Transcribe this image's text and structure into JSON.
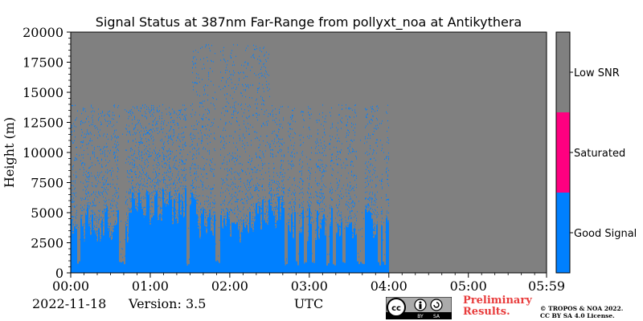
{
  "chart_data": {
    "type": "heatmap",
    "title": "Signal Status at 387nm Far-Range from pollyxt_noa at Antikythera",
    "xlabel": "UTC",
    "ylabel": "Height (m)",
    "x_ticks": [
      "00:00",
      "01:00",
      "02:00",
      "03:00",
      "04:00",
      "05:00",
      "05:59"
    ],
    "y_ticks": [
      "0",
      "2500",
      "5000",
      "7500",
      "10000",
      "12500",
      "15000",
      "17500",
      "20000"
    ],
    "xlim": [
      "00:00",
      "05:59"
    ],
    "ylim": [
      0,
      20000
    ],
    "colorbar": {
      "categories": [
        {
          "label": "Good Signal",
          "color": "#0080ff"
        },
        {
          "label": "Saturated",
          "color": "#ff0080"
        },
        {
          "label": "Low SNR",
          "color": "#808080"
        }
      ]
    },
    "description_data": {
      "good_signal_coverage_end": "04:00",
      "background": "Low SNR"
    }
  },
  "footer": {
    "date": "2022-11-18",
    "version": "Version: 3.5",
    "preliminary_line1": "Preliminary",
    "preliminary_line2": "Results.",
    "copyright_line1": "© TROPOS & NOA 2022.",
    "copyright_line2": "CC BY SA 4.0 License.",
    "license_badge": {
      "cc": "cc",
      "by": "BY",
      "sa": "SA"
    }
  },
  "colors": {
    "good": "#0080ff",
    "saturated": "#ff0080",
    "low": "#808080"
  }
}
